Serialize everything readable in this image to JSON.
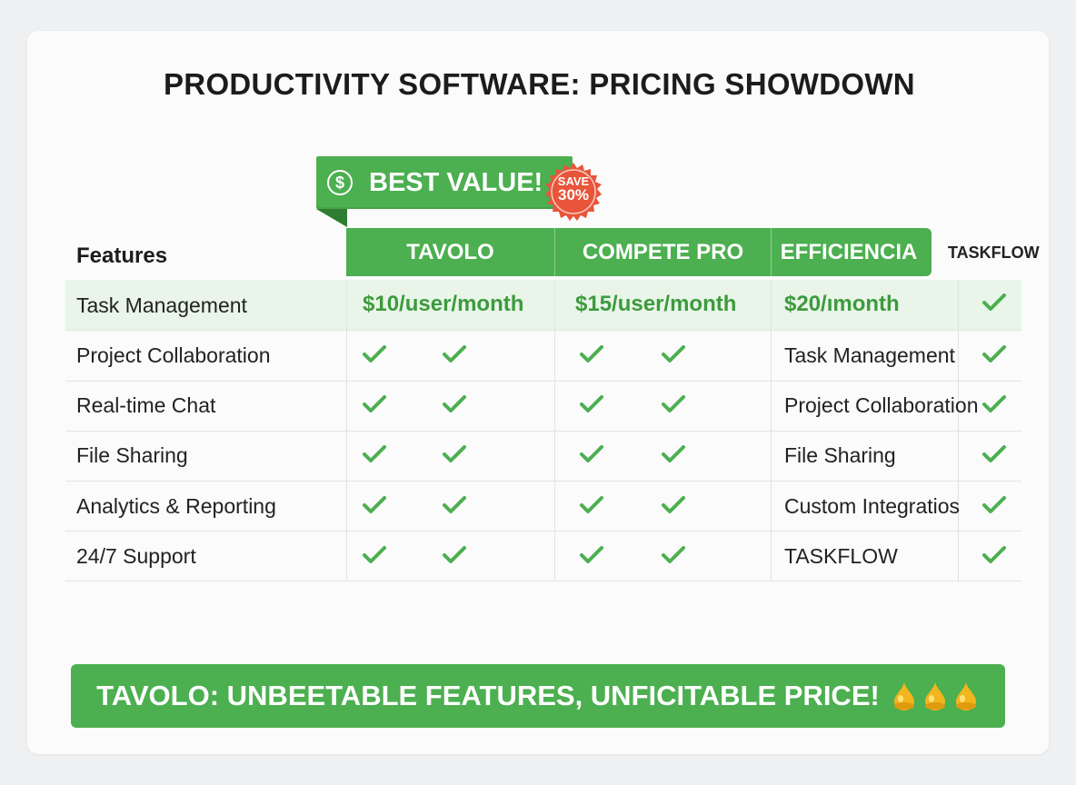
{
  "title": "PRODUCTIVITY SOFTWARE: PRICING SHOWDOWN",
  "banner": {
    "text": "BEST VALUE!",
    "currency_symbol": "$",
    "badge_line1": "SAVE",
    "badge_line2": "30%"
  },
  "table": {
    "features_header": "Features",
    "products": [
      "TAVOLO",
      "COMPETE PRO",
      "EFFICIENCIA"
    ],
    "extra_column_header": "TASKFLOW",
    "prices": [
      "$10/user/month",
      "$15/user/month",
      "$20/ımonth"
    ],
    "rows": [
      {
        "feature": "Task Management"
      },
      {
        "feature": "Project Collaboration",
        "efficiencia_text": "Task Management"
      },
      {
        "feature": "Real-time Chat",
        "efficiencia_text": "Project Collaboration"
      },
      {
        "feature": "File Sharing",
        "efficiencia_text": "File Sharing"
      },
      {
        "feature": "Analytics & Reporting",
        "efficiencia_text": "Custom Integratios"
      },
      {
        "feature": "24/7 Support",
        "efficiencia_text": "TASKFLOW"
      }
    ]
  },
  "footer": {
    "text": "TAVOLO: UNBEETABLE FEATURES, UNFICITABLE PRICE!"
  },
  "colors": {
    "green": "#4caf50",
    "dark_green_text": "#3d9a3d",
    "badge_red": "#e8553a",
    "row_highlight": "#e8f5e8"
  },
  "icons": [
    "dollar-icon",
    "save-badge-icon",
    "check-icon",
    "drop-icon"
  ]
}
